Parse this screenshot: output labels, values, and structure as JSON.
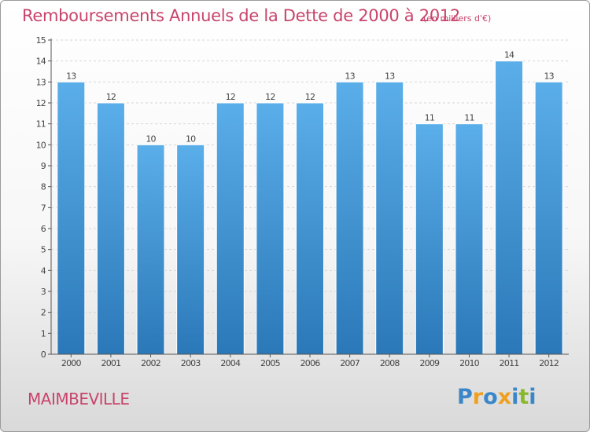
{
  "header": {
    "title": "Remboursements Annuels de la Dette de 2000 à 2012",
    "subtitle": "(en milliers d'€)"
  },
  "commune": "MAIMBEVILLE",
  "logo": {
    "text": "Proxiti",
    "letters": [
      {
        "ch": "P",
        "color": "#3a86c8"
      },
      {
        "ch": "r",
        "color": "#f0a020"
      },
      {
        "ch": "o",
        "color": "#3a86c8"
      },
      {
        "ch": "x",
        "color": "#f0a020"
      },
      {
        "ch": "i",
        "color": "#3a86c8"
      },
      {
        "ch": "t",
        "color": "#88b92d"
      },
      {
        "ch": "i",
        "color": "#3a86c8"
      }
    ]
  },
  "colors": {
    "accent": "#c8446c",
    "bar_top": "#5aaee9",
    "bar_bottom": "#2b78b8"
  },
  "chart_data": {
    "type": "bar",
    "title": "Remboursements Annuels de la Dette de 2000 à 2012",
    "subtitle": "(en milliers d'€)",
    "categories": [
      "2000",
      "2001",
      "2002",
      "2003",
      "2004",
      "2005",
      "2006",
      "2007",
      "2008",
      "2009",
      "2010",
      "2011",
      "2012"
    ],
    "values": [
      13,
      12,
      10,
      10,
      12,
      12,
      12,
      13,
      13,
      11,
      11,
      14,
      13
    ],
    "ylim": [
      0,
      15
    ],
    "yticks": [
      0,
      1,
      2,
      3,
      4,
      5,
      6,
      7,
      8,
      9,
      10,
      11,
      12,
      13,
      14,
      15
    ],
    "grid": true
  }
}
